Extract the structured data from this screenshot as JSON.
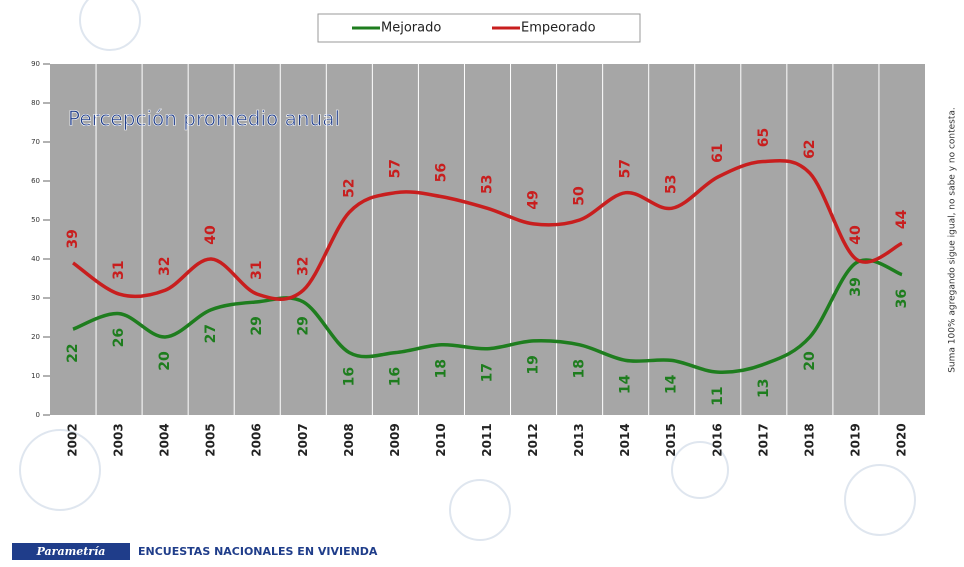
{
  "chart_data": {
    "type": "line",
    "title": "Percepción promedio anual",
    "annotation": "Suma 100% agregando sigue igual, no sabe y no contesta.",
    "categories": [
      "2002",
      "2003",
      "2004",
      "2005",
      "2006",
      "2007",
      "2008",
      "2009",
      "2010",
      "2011",
      "2012",
      "2013",
      "2014",
      "2015",
      "2016",
      "2017",
      "2018",
      "2019",
      "2020"
    ],
    "series": [
      {
        "name": "Mejorado",
        "color": "#1e7d1e",
        "values": [
          22,
          26,
          20,
          27,
          29,
          29,
          16,
          16,
          18,
          17,
          19,
          18,
          14,
          14,
          11,
          13,
          20,
          39,
          36
        ]
      },
      {
        "name": "Empeorado",
        "color": "#c81e1e",
        "values": [
          39,
          31,
          32,
          40,
          31,
          32,
          52,
          57,
          56,
          53,
          49,
          50,
          57,
          53,
          61,
          65,
          62,
          40,
          44
        ]
      }
    ],
    "ylim": [
      0,
      90
    ],
    "yticks": [
      0,
      10,
      20,
      30,
      40,
      50,
      60,
      70,
      80,
      90
    ],
    "grid": true,
    "legend": "top"
  },
  "footer": {
    "brand": "Parametría",
    "text": "ENCUESTAS NACIONALES EN VIVIENDA"
  }
}
